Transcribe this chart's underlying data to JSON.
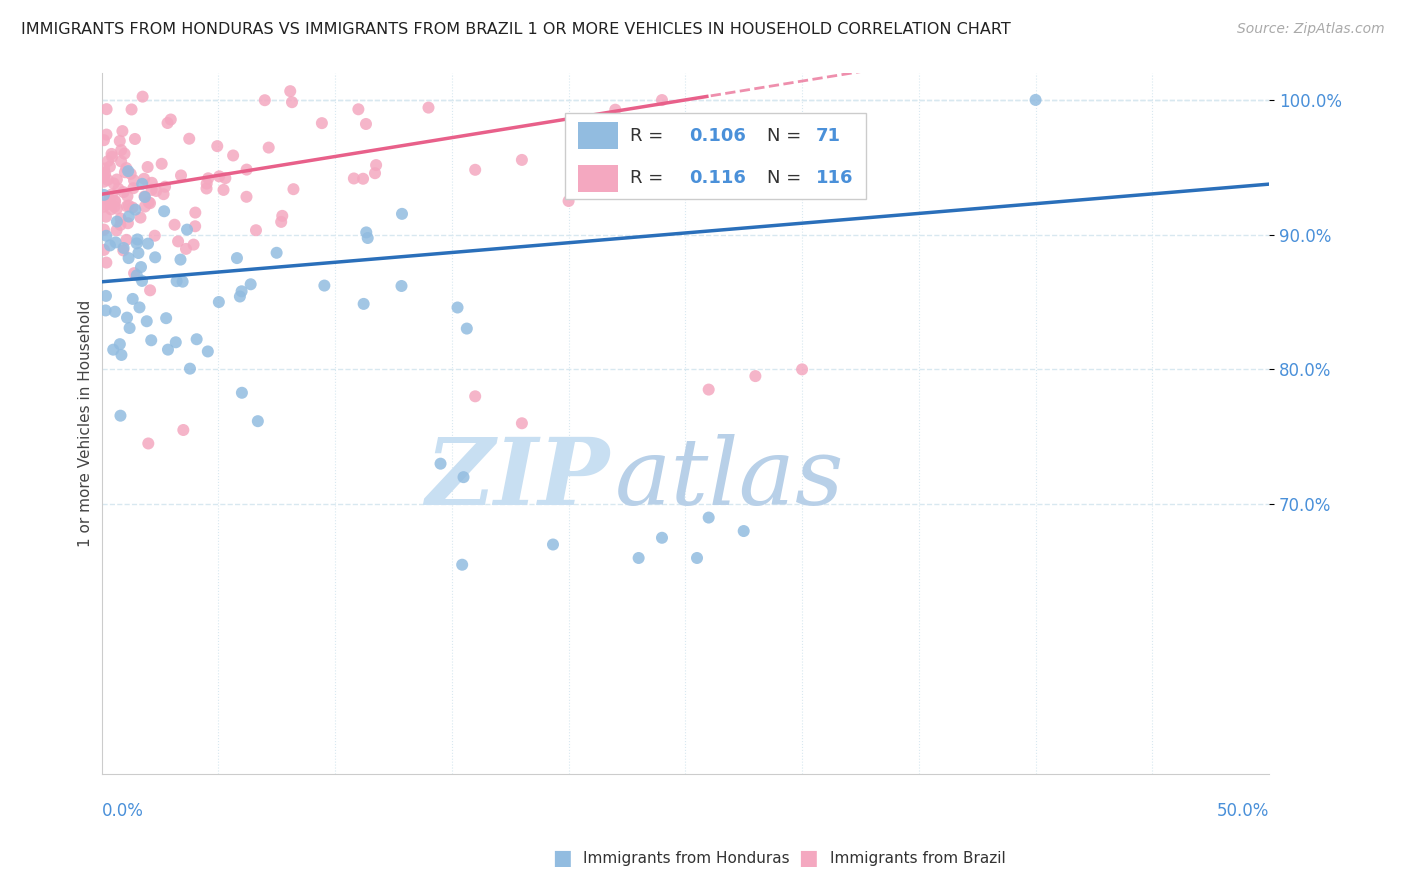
{
  "title": "IMMIGRANTS FROM HONDURAS VS IMMIGRANTS FROM BRAZIL 1 OR MORE VEHICLES IN HOUSEHOLD CORRELATION CHART",
  "source": "Source: ZipAtlas.com",
  "ylabel": "1 or more Vehicles in Household",
  "xmin": 0.0,
  "xmax": 0.5,
  "ymin": 0.5,
  "ymax": 1.02,
  "yticks": [
    0.7,
    0.8,
    0.9,
    1.0
  ],
  "ytick_labels": [
    "70.0%",
    "80.0%",
    "90.0%",
    "100.0%"
  ],
  "watermark_zip": "ZIP",
  "watermark_atlas": "atlas",
  "blue_color": "#92bce0",
  "pink_color": "#f4a8c0",
  "blue_line_color": "#2a6fba",
  "pink_line_color": "#e8608a",
  "axis_color": "#4a90d9",
  "watermark_color_zip": "#c8dff2",
  "watermark_color_atlas": "#b8d0e8",
  "grid_color": "#d8e8f0",
  "grid_style": ":",
  "hond_intercept": 0.865,
  "hond_slope": 0.145,
  "braz_intercept": 0.93,
  "braz_slope": 0.28
}
